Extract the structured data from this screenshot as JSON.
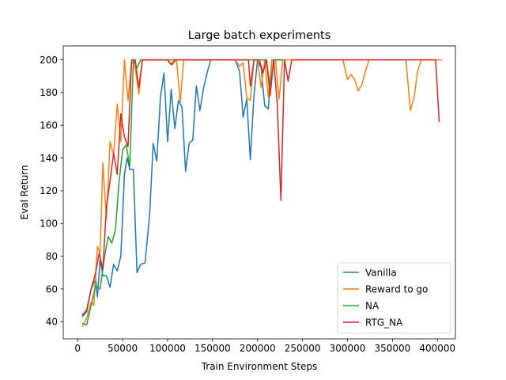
{
  "chart_data": {
    "type": "line",
    "title": "Large batch experiments",
    "xlabel": "Train Environment Steps",
    "ylabel": "Eval Return",
    "xlim": [
      -16000,
      420000
    ],
    "ylim": [
      29.5,
      208.5
    ],
    "xticks": [
      0,
      50000,
      100000,
      150000,
      200000,
      250000,
      300000,
      350000,
      400000
    ],
    "yticks": [
      40,
      60,
      80,
      100,
      120,
      140,
      160,
      180,
      200
    ],
    "grid": false,
    "legend": "lower-right",
    "series": [
      {
        "name": "Vanilla",
        "color": "#1f77b4",
        "points": [
          [
            5000,
            43
          ],
          [
            10000,
            46
          ],
          [
            15000,
            60
          ],
          [
            20000,
            66
          ],
          [
            22000,
            55
          ],
          [
            25000,
            78
          ],
          [
            28000,
            68
          ],
          [
            32000,
            68
          ],
          [
            36000,
            61
          ],
          [
            40000,
            75
          ],
          [
            44000,
            71
          ],
          [
            48000,
            80
          ],
          [
            52000,
            130
          ],
          [
            55000,
            140
          ],
          [
            58000,
            133
          ],
          [
            62000,
            133
          ],
          [
            66000,
            70
          ],
          [
            70000,
            75
          ],
          [
            75000,
            76
          ],
          [
            80000,
            105
          ],
          [
            84000,
            149
          ],
          [
            88000,
            138
          ],
          [
            92000,
            177
          ],
          [
            96000,
            192
          ],
          [
            100000,
            150
          ],
          [
            104000,
            182
          ],
          [
            108000,
            158
          ],
          [
            112000,
            175
          ],
          [
            116000,
            171
          ],
          [
            120000,
            132
          ],
          [
            124000,
            149
          ],
          [
            128000,
            151
          ],
          [
            132000,
            184
          ],
          [
            136000,
            169
          ],
          [
            140000,
            183
          ],
          [
            144000,
            192
          ],
          [
            148000,
            200
          ],
          [
            175000,
            200
          ],
          [
            180000,
            193
          ],
          [
            184000,
            165
          ],
          [
            188000,
            176
          ],
          [
            192000,
            139
          ],
          [
            196000,
            178
          ],
          [
            200000,
            200
          ],
          [
            204000,
            195
          ],
          [
            208000,
            172
          ],
          [
            212000,
            170
          ],
          [
            216000,
            200
          ],
          [
            228000,
            200
          ]
        ]
      },
      {
        "name": "Reward to go",
        "color": "#ff7f0e",
        "points": [
          [
            5000,
            37
          ],
          [
            10000,
            42
          ],
          [
            15000,
            52
          ],
          [
            18000,
            50
          ],
          [
            22000,
            86
          ],
          [
            25000,
            82
          ],
          [
            28000,
            137
          ],
          [
            32000,
            103
          ],
          [
            36000,
            150
          ],
          [
            40000,
            142
          ],
          [
            44000,
            173
          ],
          [
            48000,
            150
          ],
          [
            52000,
            200
          ],
          [
            56000,
            175
          ],
          [
            60000,
            199
          ],
          [
            64000,
            195
          ],
          [
            68000,
            179
          ],
          [
            72000,
            200
          ],
          [
            100000,
            200
          ],
          [
            105000,
            197
          ],
          [
            110000,
            200
          ],
          [
            114000,
            174
          ],
          [
            118000,
            200
          ],
          [
            175000,
            200
          ],
          [
            180000,
            196
          ],
          [
            184000,
            198
          ],
          [
            188000,
            177
          ],
          [
            192000,
            175
          ],
          [
            196000,
            200
          ],
          [
            200000,
            200
          ],
          [
            204000,
            183
          ],
          [
            208000,
            200
          ],
          [
            212000,
            177
          ],
          [
            216000,
            200
          ],
          [
            220000,
            200
          ],
          [
            224000,
            176
          ],
          [
            228000,
            200
          ],
          [
            295000,
            200
          ],
          [
            300000,
            188
          ],
          [
            304000,
            191
          ],
          [
            308000,
            188
          ],
          [
            312000,
            181
          ],
          [
            316000,
            185
          ],
          [
            320000,
            193
          ],
          [
            324000,
            200
          ],
          [
            365000,
            200
          ],
          [
            370000,
            169
          ],
          [
            374000,
            177
          ],
          [
            378000,
            193
          ],
          [
            382000,
            200
          ],
          [
            405000,
            200
          ]
        ]
      },
      {
        "name": "NA",
        "color": "#2ca02c",
        "points": [
          [
            5000,
            39
          ],
          [
            10000,
            38
          ],
          [
            15000,
            50
          ],
          [
            20000,
            62
          ],
          [
            25000,
            60
          ],
          [
            30000,
            80
          ],
          [
            34000,
            92
          ],
          [
            38000,
            88
          ],
          [
            42000,
            96
          ],
          [
            46000,
            125
          ],
          [
            50000,
            145
          ],
          [
            54000,
            148
          ],
          [
            58000,
            135
          ],
          [
            62000,
            200
          ],
          [
            66000,
            195
          ],
          [
            70000,
            200
          ],
          [
            210000,
            200
          ],
          [
            214000,
            182
          ],
          [
            218000,
            200
          ],
          [
            228000,
            200
          ]
        ]
      },
      {
        "name": "RTG_NA",
        "color": "#d62728",
        "points": [
          [
            5000,
            44
          ],
          [
            10000,
            47
          ],
          [
            15000,
            60
          ],
          [
            20000,
            70
          ],
          [
            24000,
            82
          ],
          [
            28000,
            72
          ],
          [
            32000,
            110
          ],
          [
            36000,
            126
          ],
          [
            40000,
            143
          ],
          [
            44000,
            130
          ],
          [
            48000,
            167
          ],
          [
            52000,
            153
          ],
          [
            56000,
            147
          ],
          [
            60000,
            200
          ],
          [
            64000,
            200
          ],
          [
            68000,
            183
          ],
          [
            72000,
            200
          ],
          [
            100000,
            200
          ],
          [
            104000,
            197
          ],
          [
            108000,
            200
          ],
          [
            190000,
            200
          ],
          [
            192000,
            184
          ],
          [
            196000,
            200
          ],
          [
            202000,
            200
          ],
          [
            206000,
            192
          ],
          [
            210000,
            200
          ],
          [
            214000,
            178
          ],
          [
            218000,
            200
          ],
          [
            222000,
            172
          ],
          [
            226000,
            114
          ],
          [
            230000,
            200
          ],
          [
            234000,
            187
          ],
          [
            238000,
            200
          ],
          [
            398000,
            200
          ],
          [
            402000,
            162
          ]
        ]
      }
    ]
  }
}
